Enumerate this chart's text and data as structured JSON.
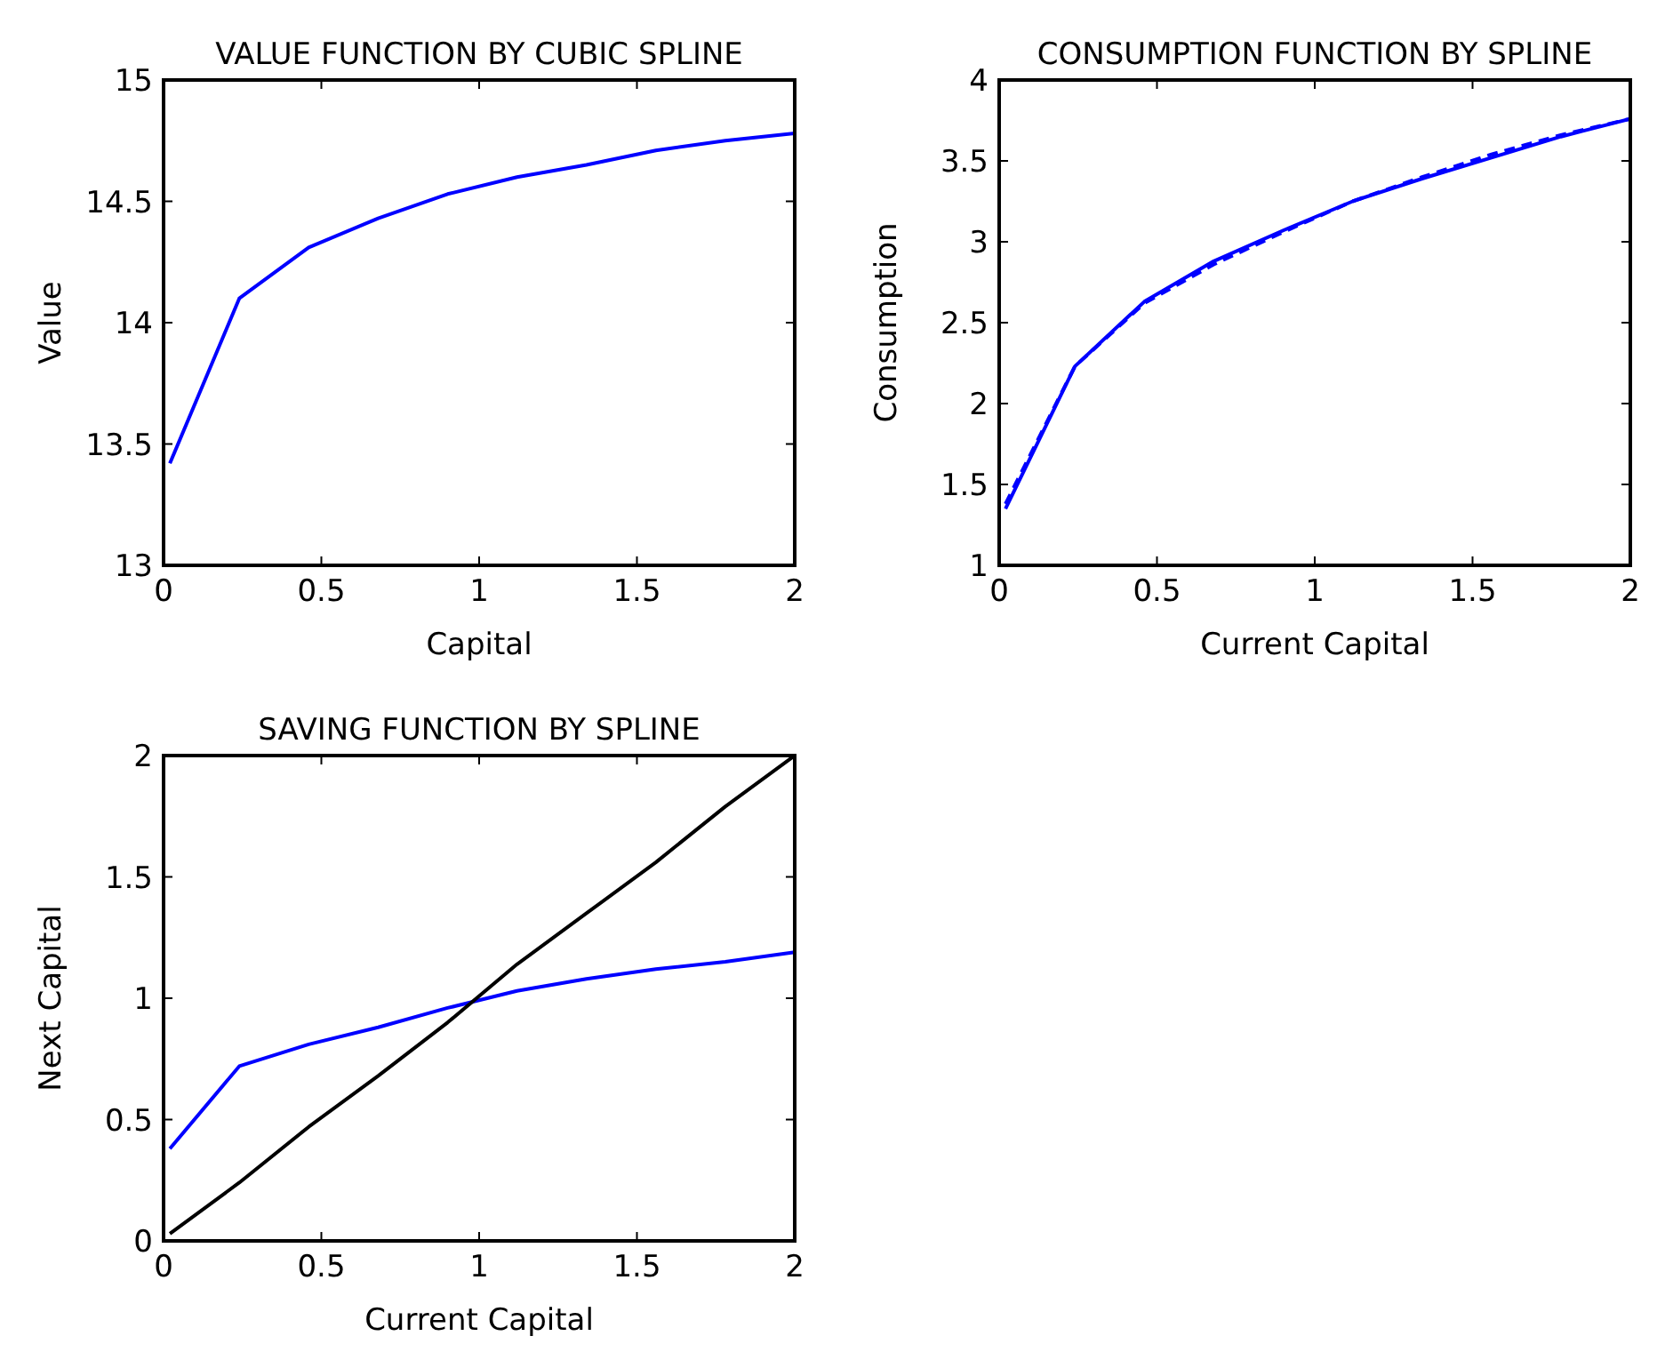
{
  "chart_data": [
    {
      "type": "line",
      "title": "VALUE FUNCTION BY CUBIC SPLINE",
      "xlabel": "Capital",
      "ylabel": "Value",
      "x": [
        0.02,
        0.24,
        0.46,
        0.68,
        0.9,
        1.12,
        1.34,
        1.56,
        1.78,
        2.0
      ],
      "series": [
        {
          "color": "#0000ff",
          "values": [
            13.42,
            14.1,
            14.31,
            14.43,
            14.53,
            14.6,
            14.65,
            14.71,
            14.75,
            14.78
          ]
        }
      ],
      "xlim": [
        0,
        2
      ],
      "xticks": [
        0,
        0.5,
        1,
        1.5,
        2
      ],
      "ylim": [
        13,
        15
      ],
      "yticks": [
        13,
        13.5,
        14,
        14.5,
        15
      ]
    },
    {
      "type": "line",
      "title": "CONSUMPTION FUNCTION BY SPLINE",
      "xlabel": "Current Capital",
      "ylabel": "Consumption",
      "x": [
        0.02,
        0.24,
        0.46,
        0.68,
        0.9,
        1.12,
        1.34,
        1.56,
        1.78,
        2.0
      ],
      "series": [
        {
          "color": "#0000ff",
          "line_style": "dashed",
          "values": [
            1.38,
            2.23,
            2.62,
            2.86,
            3.06,
            3.25,
            3.4,
            3.54,
            3.66,
            3.76
          ]
        },
        {
          "color": "#0000ff",
          "line_style": "solid",
          "values": [
            1.35,
            2.23,
            2.63,
            2.88,
            3.07,
            3.25,
            3.39,
            3.52,
            3.65,
            3.76
          ]
        }
      ],
      "xlim": [
        0,
        2
      ],
      "xticks": [
        0,
        0.5,
        1,
        1.5,
        2
      ],
      "ylim": [
        1,
        4
      ],
      "yticks": [
        1,
        1.5,
        2,
        2.5,
        3,
        3.5,
        4
      ]
    },
    {
      "type": "line",
      "title": "SAVING FUNCTION BY SPLINE",
      "xlabel": "Current Capital",
      "ylabel": "Next Capital",
      "x": [
        0.02,
        0.24,
        0.46,
        0.68,
        0.9,
        1.12,
        1.34,
        1.56,
        1.78,
        2.0
      ],
      "series": [
        {
          "color": "#0000ff",
          "values": [
            0.38,
            0.72,
            0.81,
            0.88,
            0.96,
            1.03,
            1.08,
            1.12,
            1.15,
            1.19
          ]
        },
        {
          "color": "#000000",
          "values": [
            0.03,
            0.24,
            0.47,
            0.68,
            0.9,
            1.14,
            1.35,
            1.56,
            1.79,
            2.0
          ]
        }
      ],
      "xlim": [
        0,
        2
      ],
      "xticks": [
        0,
        0.5,
        1,
        1.5,
        2
      ],
      "ylim": [
        0,
        2
      ],
      "yticks": [
        0,
        0.5,
        1,
        1.5,
        2
      ]
    }
  ]
}
